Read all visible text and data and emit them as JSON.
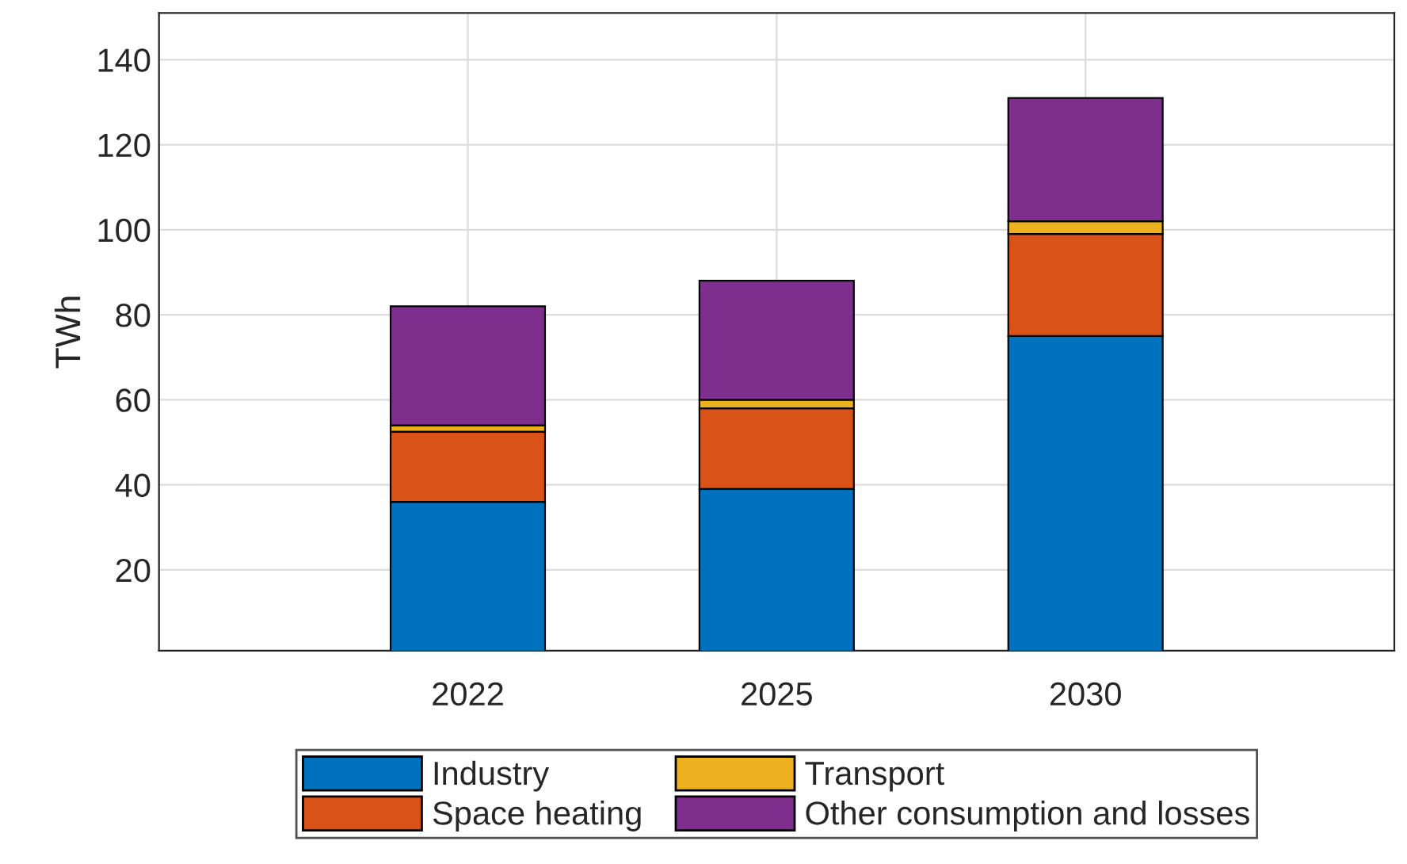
{
  "chart_data": {
    "type": "bar",
    "stacked": true,
    "ylabel": "TWh",
    "categories": [
      "2022",
      "2025",
      "2030"
    ],
    "series": [
      {
        "name": "Industry",
        "color": "#0072bd",
        "values": [
          36,
          39,
          75
        ]
      },
      {
        "name": "Space heating",
        "color": "#d95319",
        "values": [
          16.5,
          19,
          24
        ]
      },
      {
        "name": "Transport",
        "color": "#edb120",
        "values": [
          1.5,
          2,
          3
        ]
      },
      {
        "name": "Other consumption and losses",
        "color": "#7e2f8e",
        "values": [
          28,
          28,
          29
        ]
      }
    ],
    "ylim": [
      1,
      151
    ],
    "yticks": [
      20,
      40,
      60,
      80,
      100,
      120,
      140
    ],
    "grid": true,
    "legend": "bottom"
  }
}
